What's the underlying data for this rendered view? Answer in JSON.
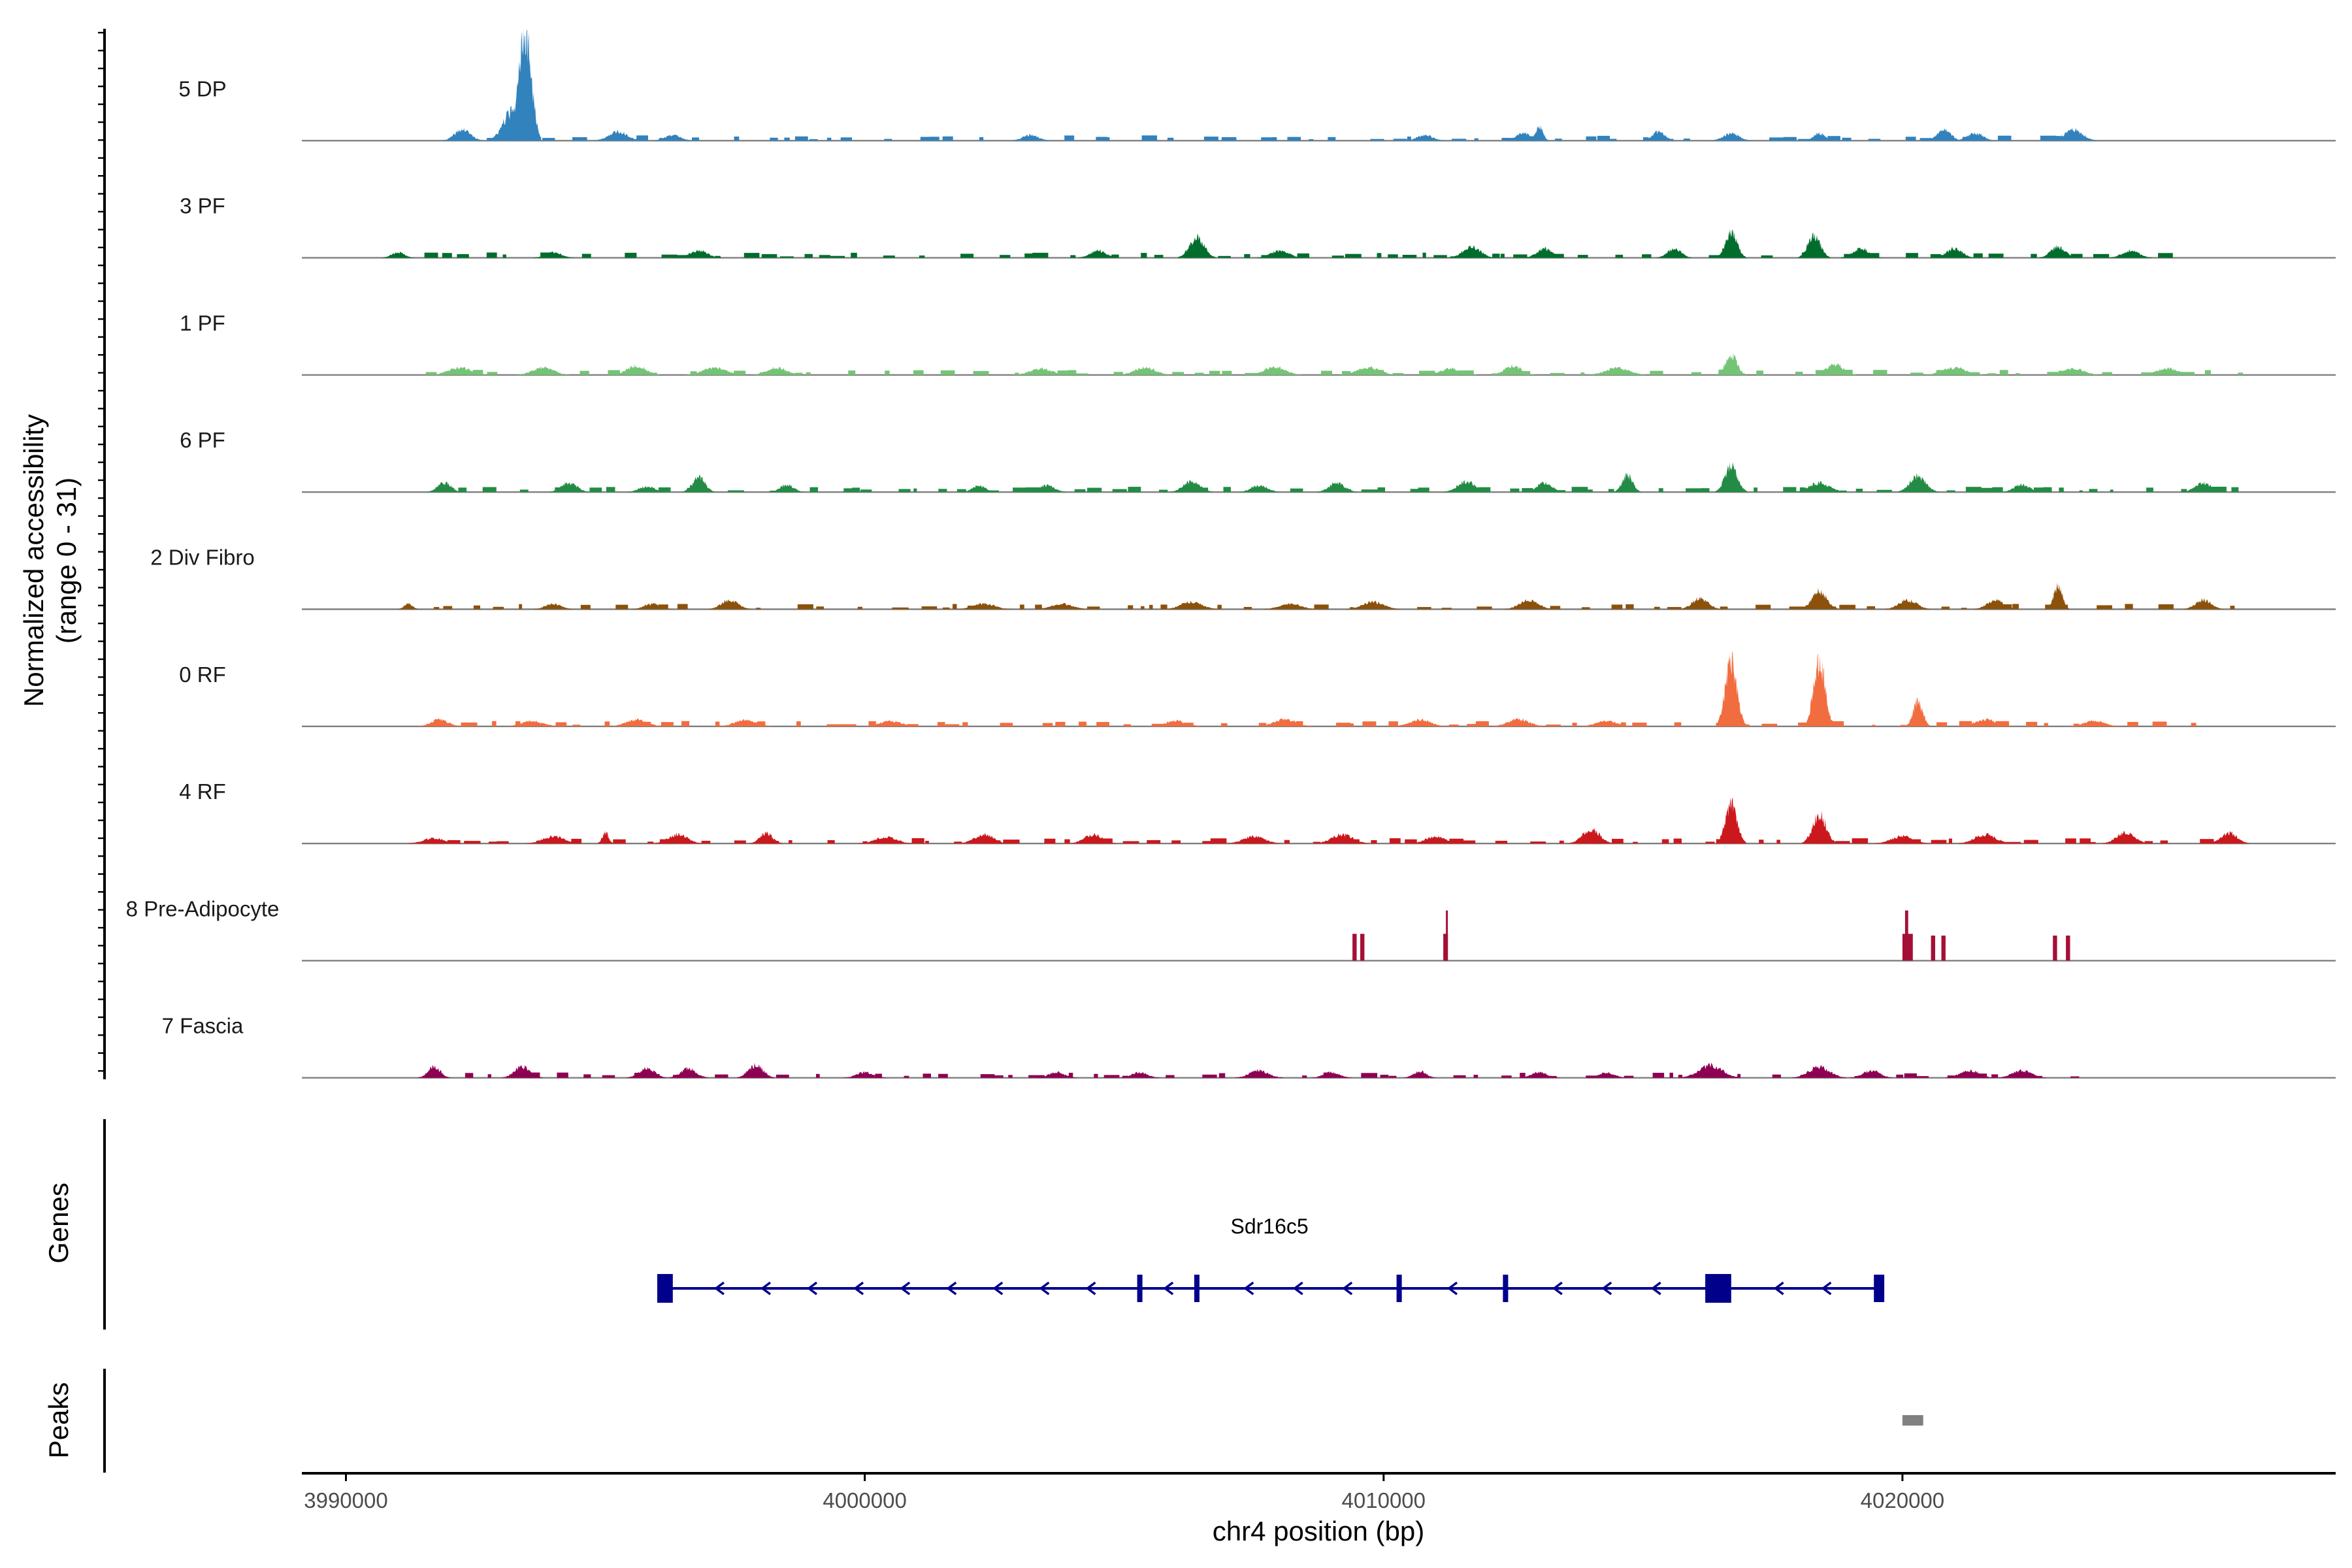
{
  "chart_data": {
    "type": "area",
    "title": "",
    "ylabel": "Normalized accessibility (range 0 - 31)",
    "ylabel_lines": [
      "Normalized accessibility",
      "(range 0 - 31)"
    ],
    "xlabel": "chr4 position (bp)",
    "xlim": [
      3989150,
      4028350
    ],
    "ylim": [
      0,
      31
    ],
    "x_ticks": [
      3990000,
      4000000,
      4010000,
      4020000
    ],
    "x_tick_labels": [
      "3990000",
      "4000000",
      "4010000",
      "4020000"
    ],
    "series": [
      {
        "name": "5 DP",
        "color": "#3182BD",
        "rng": [
          3991500,
          4023500
        ],
        "peaks": [
          [
            3993450,
            30.0,
            120
          ],
          [
            3993200,
            8.0,
            170
          ],
          [
            3992250,
            3.0,
            150
          ],
          [
            3995250,
            2.5,
            180
          ],
          [
            3996300,
            1.5,
            150
          ],
          [
            4003200,
            1.5,
            150
          ],
          [
            4010800,
            1.5,
            150
          ],
          [
            4012700,
            2.0,
            160
          ],
          [
            4013000,
            4.0,
            70
          ],
          [
            4015300,
            2.5,
            120
          ],
          [
            4016700,
            2.0,
            150
          ],
          [
            4018400,
            2.0,
            110
          ],
          [
            4020800,
            3.0,
            130
          ],
          [
            4021400,
            2.0,
            150
          ],
          [
            4023300,
            3.0,
            170
          ]
        ]
      },
      {
        "name": "3 PF",
        "color": "#006D2C",
        "rng": [
          3990900,
          4025800
        ],
        "peaks": [
          [
            3991000,
            1.5,
            120
          ],
          [
            3994000,
            1.5,
            150
          ],
          [
            3996800,
            2.0,
            170
          ],
          [
            4004500,
            2.0,
            150
          ],
          [
            4006400,
            5.5,
            140
          ],
          [
            4008000,
            2.0,
            170
          ],
          [
            4011700,
            3.0,
            170
          ],
          [
            4013100,
            2.5,
            150
          ],
          [
            4015600,
            2.5,
            130
          ],
          [
            4016700,
            7.0,
            110
          ],
          [
            4018300,
            6.0,
            120
          ],
          [
            4019200,
            2.5,
            150
          ],
          [
            4021000,
            2.5,
            150
          ],
          [
            4023000,
            3.0,
            140
          ],
          [
            4024400,
            2.0,
            160
          ]
        ]
      },
      {
        "name": "1 PF",
        "color": "#74C476",
        "rng": [
          3990900,
          4026500
        ],
        "peaks": [
          [
            3992200,
            2.0,
            220
          ],
          [
            3993800,
            2.0,
            200
          ],
          [
            3995600,
            2.5,
            180
          ],
          [
            3997100,
            2.0,
            220
          ],
          [
            3998300,
            2.0,
            180
          ],
          [
            4003400,
            1.8,
            200
          ],
          [
            4005400,
            2.0,
            200
          ],
          [
            4007900,
            2.2,
            200
          ],
          [
            4009700,
            2.0,
            220
          ],
          [
            4011300,
            1.8,
            200
          ],
          [
            4012500,
            2.5,
            160
          ],
          [
            4014500,
            2.0,
            220
          ],
          [
            4016700,
            5.5,
            110
          ],
          [
            4018700,
            3.0,
            160
          ],
          [
            4021000,
            2.0,
            220
          ],
          [
            4023300,
            1.8,
            200
          ],
          [
            4025100,
            1.8,
            200
          ]
        ]
      },
      {
        "name": "6 PF",
        "color": "#238B45",
        "rng": [
          3991500,
          4026500
        ],
        "peaks": [
          [
            3991900,
            2.5,
            130
          ],
          [
            3994300,
            2.5,
            150
          ],
          [
            3995800,
            1.5,
            150
          ],
          [
            3996800,
            4.0,
            120
          ],
          [
            3998500,
            2.0,
            130
          ],
          [
            4002200,
            1.8,
            120
          ],
          [
            4003500,
            1.8,
            150
          ],
          [
            4006300,
            3.0,
            160
          ],
          [
            4007600,
            1.8,
            150
          ],
          [
            4009100,
            2.5,
            150
          ],
          [
            4011600,
            3.0,
            170
          ],
          [
            4013100,
            2.5,
            150
          ],
          [
            4014700,
            4.5,
            100
          ],
          [
            4016700,
            7.0,
            120
          ],
          [
            4018400,
            2.5,
            200
          ],
          [
            4020300,
            4.5,
            150
          ],
          [
            4022300,
            2.0,
            150
          ],
          [
            4025800,
            2.5,
            160
          ]
        ]
      },
      {
        "name": "2 Div Fibro",
        "color": "#8C510A",
        "rng": [
          3991000,
          4026500
        ],
        "peaks": [
          [
            3991200,
            1.5,
            80
          ],
          [
            3994000,
            1.5,
            150
          ],
          [
            3995900,
            1.5,
            150
          ],
          [
            3997400,
            2.5,
            160
          ],
          [
            4002300,
            1.5,
            200
          ],
          [
            4003800,
            1.5,
            200
          ],
          [
            4006300,
            2.0,
            200
          ],
          [
            4008200,
            1.5,
            200
          ],
          [
            4009800,
            2.0,
            200
          ],
          [
            4012800,
            2.5,
            180
          ],
          [
            4016100,
            3.0,
            150
          ],
          [
            4018400,
            5.0,
            140
          ],
          [
            4020100,
            2.5,
            170
          ],
          [
            4021800,
            2.5,
            160
          ],
          [
            4023000,
            6.5,
            80
          ],
          [
            4025800,
            2.5,
            150
          ]
        ]
      },
      {
        "name": "0 RF",
        "color": "#F16D3F",
        "rng": [
          3991500,
          4025600
        ],
        "peaks": [
          [
            3991800,
            2.0,
            160
          ],
          [
            3993600,
            1.5,
            200
          ],
          [
            3995600,
            1.8,
            200
          ],
          [
            3997700,
            1.8,
            200
          ],
          [
            4000500,
            1.5,
            200
          ],
          [
            4006000,
            1.5,
            200
          ],
          [
            4008100,
            2.0,
            200
          ],
          [
            4010700,
            1.8,
            200
          ],
          [
            4012600,
            2.0,
            200
          ],
          [
            4014300,
            1.5,
            200
          ],
          [
            4016700,
            18.0,
            110
          ],
          [
            4018400,
            18.0,
            110
          ],
          [
            4020300,
            7.0,
            90
          ],
          [
            4021600,
            1.8,
            200
          ],
          [
            4023700,
            1.5,
            200
          ]
        ]
      },
      {
        "name": "4 RF",
        "color": "#CB181D",
        "rng": [
          3990900,
          4026500
        ],
        "peaks": [
          [
            3991700,
            1.5,
            200
          ],
          [
            3994000,
            2.0,
            200
          ],
          [
            3995000,
            3.0,
            60
          ],
          [
            3996400,
            2.5,
            180
          ],
          [
            3998100,
            3.0,
            120
          ],
          [
            4000400,
            1.8,
            200
          ],
          [
            4002300,
            2.5,
            180
          ],
          [
            4004400,
            2.5,
            170
          ],
          [
            4007500,
            2.0,
            200
          ],
          [
            4009200,
            2.5,
            200
          ],
          [
            4011000,
            2.0,
            180
          ],
          [
            4014000,
            4.0,
            160
          ],
          [
            4016700,
            11.0,
            110
          ],
          [
            4018400,
            8.0,
            130
          ],
          [
            4020000,
            2.0,
            200
          ],
          [
            4021600,
            2.5,
            200
          ],
          [
            4024300,
            3.0,
            170
          ],
          [
            4026300,
            3.0,
            150
          ]
        ]
      },
      {
        "name": "8 Pre-Adipocyte",
        "color": "#A50F37",
        "rng": [
          4009300,
          4023300
        ],
        "bars": [
          [
            4009400,
            7.5,
            80
          ],
          [
            4009550,
            7.5,
            80
          ],
          [
            4011150,
            7.5,
            90
          ],
          [
            4011200,
            14.0,
            30
          ],
          [
            4020000,
            7.5,
            200
          ],
          [
            4020050,
            14.0,
            60
          ],
          [
            4020550,
            7.0,
            80
          ],
          [
            4020750,
            7.0,
            80
          ],
          [
            4022900,
            7.0,
            80
          ],
          [
            4023150,
            7.0,
            80
          ]
        ]
      },
      {
        "name": "7 Fascia",
        "color": "#8E0152",
        "rng": [
          3991500,
          4023300
        ],
        "peaks": [
          [
            3991700,
            3.0,
            120
          ],
          [
            3993400,
            3.0,
            150
          ],
          [
            3995800,
            2.5,
            150
          ],
          [
            3996600,
            2.5,
            150
          ],
          [
            3997900,
            3.5,
            140
          ],
          [
            4000000,
            1.5,
            160
          ],
          [
            4003700,
            1.5,
            150
          ],
          [
            4005300,
            1.5,
            150
          ],
          [
            4007600,
            2.0,
            180
          ],
          [
            4009000,
            1.5,
            150
          ],
          [
            4010700,
            1.8,
            120
          ],
          [
            4013000,
            1.5,
            150
          ],
          [
            4014300,
            1.5,
            150
          ],
          [
            4016300,
            3.5,
            220
          ],
          [
            4018400,
            3.0,
            200
          ],
          [
            4019400,
            2.0,
            160
          ],
          [
            4021300,
            2.0,
            180
          ],
          [
            4022300,
            2.0,
            180
          ]
        ]
      }
    ],
    "genes": {
      "label": "Genes",
      "items": [
        {
          "name": "Sdr16c5",
          "start": 3996000,
          "end": 4019600,
          "strand": "-",
          "color": "#00008B",
          "exons": [
            [
              3996000,
              3996300
            ],
            [
              4005250,
              4005350
            ],
            [
              4006350,
              4006450
            ],
            [
              4010250,
              4010350
            ],
            [
              4012300,
              4012400
            ],
            [
              4016200,
              4016700
            ],
            [
              4019450,
              4019650
            ]
          ]
        }
      ]
    },
    "peaks_track": {
      "label": "Peaks",
      "color": "#808080",
      "regions": [
        [
          4020000,
          4020400
        ]
      ]
    }
  }
}
